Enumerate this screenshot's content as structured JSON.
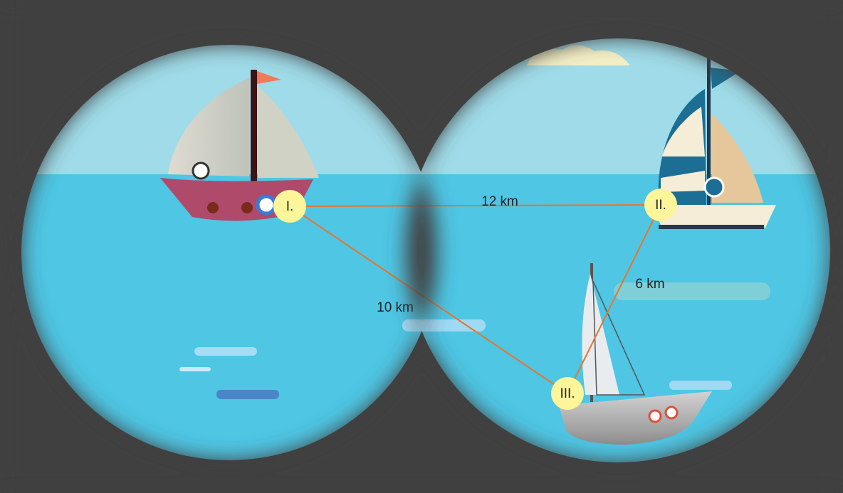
{
  "nodes": [
    {
      "label": "I."
    },
    {
      "label": "II."
    },
    {
      "label": "III."
    }
  ],
  "edges": [
    {
      "label": "12 km"
    },
    {
      "label": "10 km"
    },
    {
      "label": "6 km"
    }
  ]
}
